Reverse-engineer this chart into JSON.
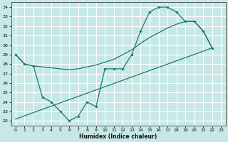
{
  "xlabel": "Humidex (Indice chaleur)",
  "xlim": [
    -0.5,
    23.5
  ],
  "ylim": [
    21.5,
    34.5
  ],
  "yticks": [
    22,
    23,
    24,
    25,
    26,
    27,
    28,
    29,
    30,
    31,
    32,
    33,
    34
  ],
  "xticks": [
    0,
    1,
    2,
    3,
    4,
    5,
    6,
    7,
    8,
    9,
    10,
    11,
    12,
    13,
    14,
    15,
    16,
    17,
    18,
    19,
    20,
    21,
    22,
    23
  ],
  "bg_color": "#c8e8e8",
  "grid_color": "#ffffff",
  "line_color": "#1a7a6e",
  "line1_x": [
    0,
    1,
    2,
    3,
    4,
    5,
    6,
    7,
    8,
    9,
    10,
    11,
    12,
    13,
    14,
    15,
    16,
    17,
    18,
    19,
    20,
    21,
    22
  ],
  "line1_y": [
    29.0,
    28.0,
    27.8,
    24.5,
    24.0,
    23.0,
    22.0,
    22.5,
    24.0,
    23.5,
    27.5,
    27.5,
    27.5,
    29.0,
    31.5,
    33.5,
    34.0,
    34.0,
    33.5,
    32.5,
    32.5,
    31.5,
    29.7
  ],
  "line2_x": [
    0,
    22
  ],
  "line2_y": [
    22.2,
    29.7
  ],
  "line3_x": [
    0,
    1,
    2,
    3,
    4,
    5,
    6,
    7,
    8,
    9,
    10,
    11,
    12,
    13,
    14,
    15,
    16,
    17,
    18,
    19,
    20,
    21,
    22
  ],
  "line3_y": [
    29.0,
    28.0,
    27.8,
    27.7,
    27.6,
    27.5,
    27.4,
    27.5,
    27.7,
    27.9,
    28.2,
    28.5,
    29.0,
    29.5,
    30.2,
    30.8,
    31.3,
    31.8,
    32.2,
    32.5,
    32.5,
    31.5,
    29.7
  ]
}
